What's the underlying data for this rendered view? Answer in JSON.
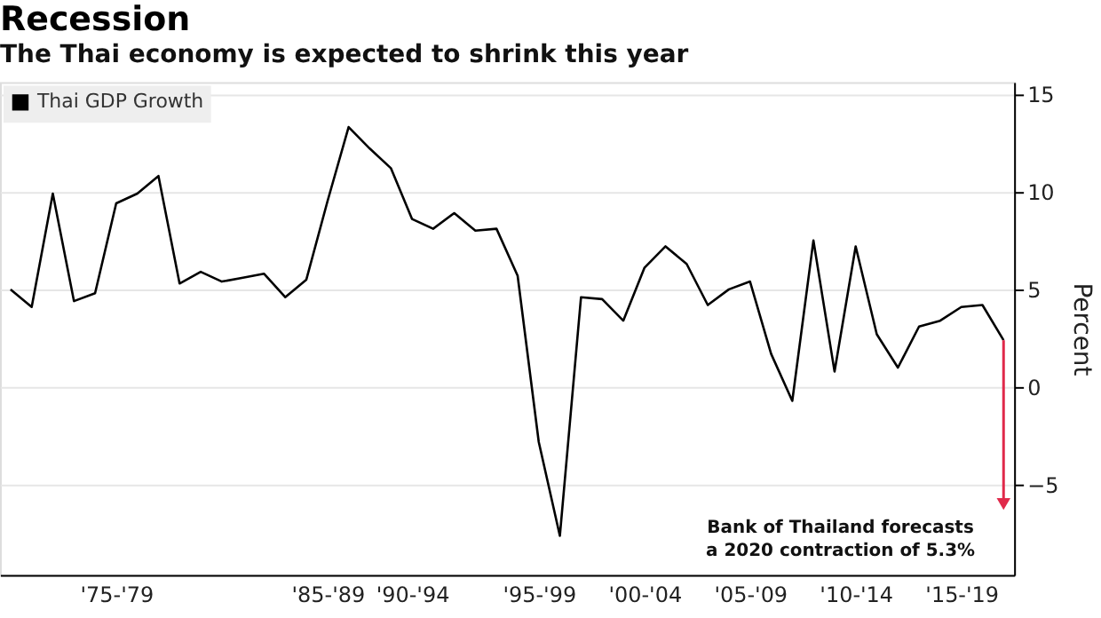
{
  "chart_data": {
    "type": "line",
    "title": "Recession",
    "subtitle": "The Thai economy is expected to shrink this year",
    "ylabel": "Percent",
    "categories": [
      null,
      null,
      null,
      null,
      null,
      "'75-'79",
      null,
      null,
      null,
      null,
      null,
      null,
      null,
      null,
      null,
      "'85-'89",
      null,
      null,
      null,
      "'90-'94",
      null,
      null,
      null,
      null,
      null,
      "'95-'99",
      null,
      null,
      null,
      null,
      "'00-'04",
      null,
      null,
      null,
      null,
      "'05-'09",
      null,
      null,
      null,
      null,
      "'10-'14",
      null,
      null,
      null,
      null,
      "'15-'19",
      null,
      null
    ],
    "series": [
      {
        "name": "Thai GDP Growth",
        "color": "#000000",
        "values": [
          5.0,
          4.1,
          9.9,
          4.4,
          4.8,
          9.4,
          9.9,
          10.8,
          5.3,
          5.9,
          5.4,
          5.6,
          5.8,
          4.6,
          5.5,
          9.5,
          13.3,
          12.2,
          11.2,
          8.6,
          8.1,
          8.9,
          8.0,
          8.1,
          5.7,
          -2.8,
          -7.6,
          4.6,
          4.5,
          3.4,
          6.1,
          7.2,
          6.3,
          4.2,
          5.0,
          5.4,
          1.7,
          -0.7,
          7.5,
          0.8,
          7.2,
          2.7,
          1.0,
          3.1,
          3.4,
          4.1,
          4.2,
          2.4
        ]
      }
    ],
    "ylim": [
      -9.6,
      15.6
    ],
    "yticks": [
      -5,
      0,
      5,
      10,
      15
    ],
    "grid": "y",
    "legend": "top left",
    "line_style": "solid",
    "marker": "none",
    "annotations": [
      "Bank of Thailand forecasts\na 2020 contraction of 5.3%"
    ]
  }
}
